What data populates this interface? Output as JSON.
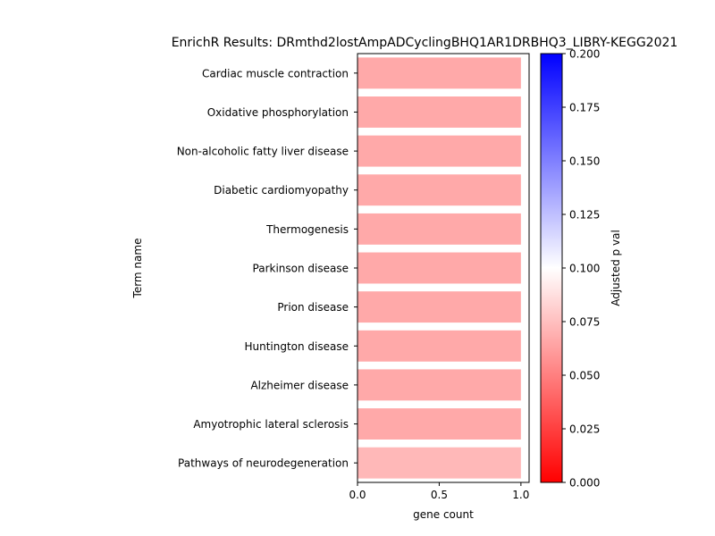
{
  "chart_data": {
    "type": "bar",
    "orientation": "horizontal",
    "title": "EnrichR Results: DRmthd2lostAmpADCyclingBHQ1AR1DRBHQ3_LIBRY-KEGG2021",
    "xlabel": "gene count",
    "ylabel": "Term name",
    "xlim": [
      0,
      1.05
    ],
    "xticks": [
      "0.0",
      "0.5",
      "1.0"
    ],
    "categories": [
      "Cardiac muscle contraction",
      "Oxidative phosphorylation",
      "Non-alcoholic fatty liver disease",
      "Diabetic cardiomyopathy",
      "Thermogenesis",
      "Parkinson disease",
      "Prion disease",
      "Huntington disease",
      "Alzheimer disease",
      "Amyotrophic lateral sclerosis",
      "Pathways of neurodegeneration"
    ],
    "values": [
      1,
      1,
      1,
      1,
      1,
      1,
      1,
      1,
      1,
      1,
      1
    ],
    "adjusted_p": [
      0.058,
      0.058,
      0.058,
      0.058,
      0.058,
      0.058,
      0.058,
      0.058,
      0.058,
      0.058,
      0.065
    ],
    "colorbar": {
      "label": "Adjusted p val",
      "min": 0.0,
      "max": 0.2,
      "ticks": [
        "0.000",
        "0.025",
        "0.050",
        "0.075",
        "0.100",
        "0.125",
        "0.150",
        "0.175",
        "0.200"
      ],
      "colormap": "bwr_r",
      "colors": {
        "low": "#ff0000",
        "mid": "#ffffff",
        "high": "#0000ff"
      }
    },
    "grid": false,
    "legend": "colorbar-right"
  }
}
